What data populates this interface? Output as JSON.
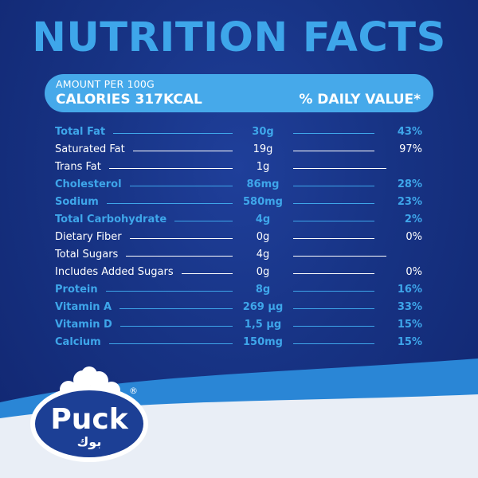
{
  "title": "NUTRITION FACTS",
  "header": {
    "amount_per": "AMOUNT PER 100G",
    "calories": "CALORIES 317KCAL",
    "daily_value": "% DAILY VALUE*"
  },
  "nutrients": [
    {
      "name": "Total Fat",
      "amount": "30g",
      "dv": "43%",
      "highlight": true
    },
    {
      "name": "Saturated Fat",
      "amount": "19g",
      "dv": "97%",
      "highlight": false
    },
    {
      "name": "Trans Fat",
      "amount": "1g",
      "dv": "",
      "highlight": false
    },
    {
      "name": "Cholesterol",
      "amount": "86mg",
      "dv": "28%",
      "highlight": true
    },
    {
      "name": "Sodium",
      "amount": "580mg",
      "dv": "23%",
      "highlight": true
    },
    {
      "name": "Total Carbohydrate",
      "amount": "4g",
      "dv": "2%",
      "highlight": true
    },
    {
      "name": "Dietary Fiber",
      "amount": "0g",
      "dv": "0%",
      "highlight": false
    },
    {
      "name": "Total Sugars",
      "amount": "4g",
      "dv": "",
      "highlight": false
    },
    {
      "name": "Includes Added Sugars",
      "amount": "0g",
      "dv": "0%",
      "highlight": false
    },
    {
      "name": "Protein",
      "amount": "8g",
      "dv": "16%",
      "highlight": true
    },
    {
      "name": "Vitamin A",
      "amount": "269 µg",
      "dv": "33%",
      "highlight": true
    },
    {
      "name": "Vitamin D",
      "amount": "1,5 µg",
      "dv": "15%",
      "highlight": true
    },
    {
      "name": "Calcium",
      "amount": "150mg",
      "dv": "15%",
      "highlight": true
    }
  ],
  "brand": {
    "name": "Puck",
    "arabic_name": "بوك",
    "registered_mark": "®"
  },
  "colors": {
    "background": "#152d7a",
    "accent": "#3ea6ea",
    "text": "#ffffff",
    "logo_blue": "#1c3f95",
    "wave_light": "#e9eef6"
  }
}
